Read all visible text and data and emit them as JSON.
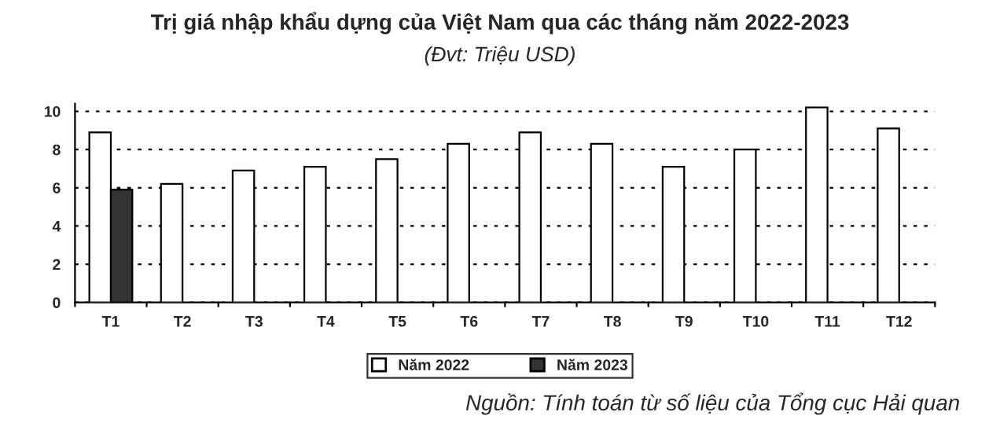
{
  "chart_data": {
    "type": "bar",
    "title": "Trị giá nhập khẩu dựng của Việt Nam qua các tháng năm 2022-2023",
    "subtitle": "(Đvt: Triệu USD)",
    "categories": [
      "T1",
      "T2",
      "T3",
      "T4",
      "T5",
      "T6",
      "T7",
      "T8",
      "T9",
      "T10",
      "T11",
      "T12"
    ],
    "series": [
      {
        "name": "Năm 2022",
        "color": "#ffffff",
        "values": [
          8.9,
          6.2,
          6.9,
          7.1,
          7.5,
          8.3,
          8.9,
          8.3,
          7.1,
          8.0,
          10.2,
          9.1
        ]
      },
      {
        "name": "Năm 2023",
        "color": "#333333",
        "values": [
          5.9,
          null,
          null,
          null,
          null,
          null,
          null,
          null,
          null,
          null,
          null,
          null
        ]
      }
    ],
    "ylim": [
      0,
      10.4
    ],
    "yticks": [
      0,
      2,
      4,
      6,
      8,
      10
    ],
    "grid": "y",
    "legend": "bottom",
    "annotations": [
      "Nguồn: Tính toán từ số liệu của Tổng cục Hải quan"
    ]
  }
}
